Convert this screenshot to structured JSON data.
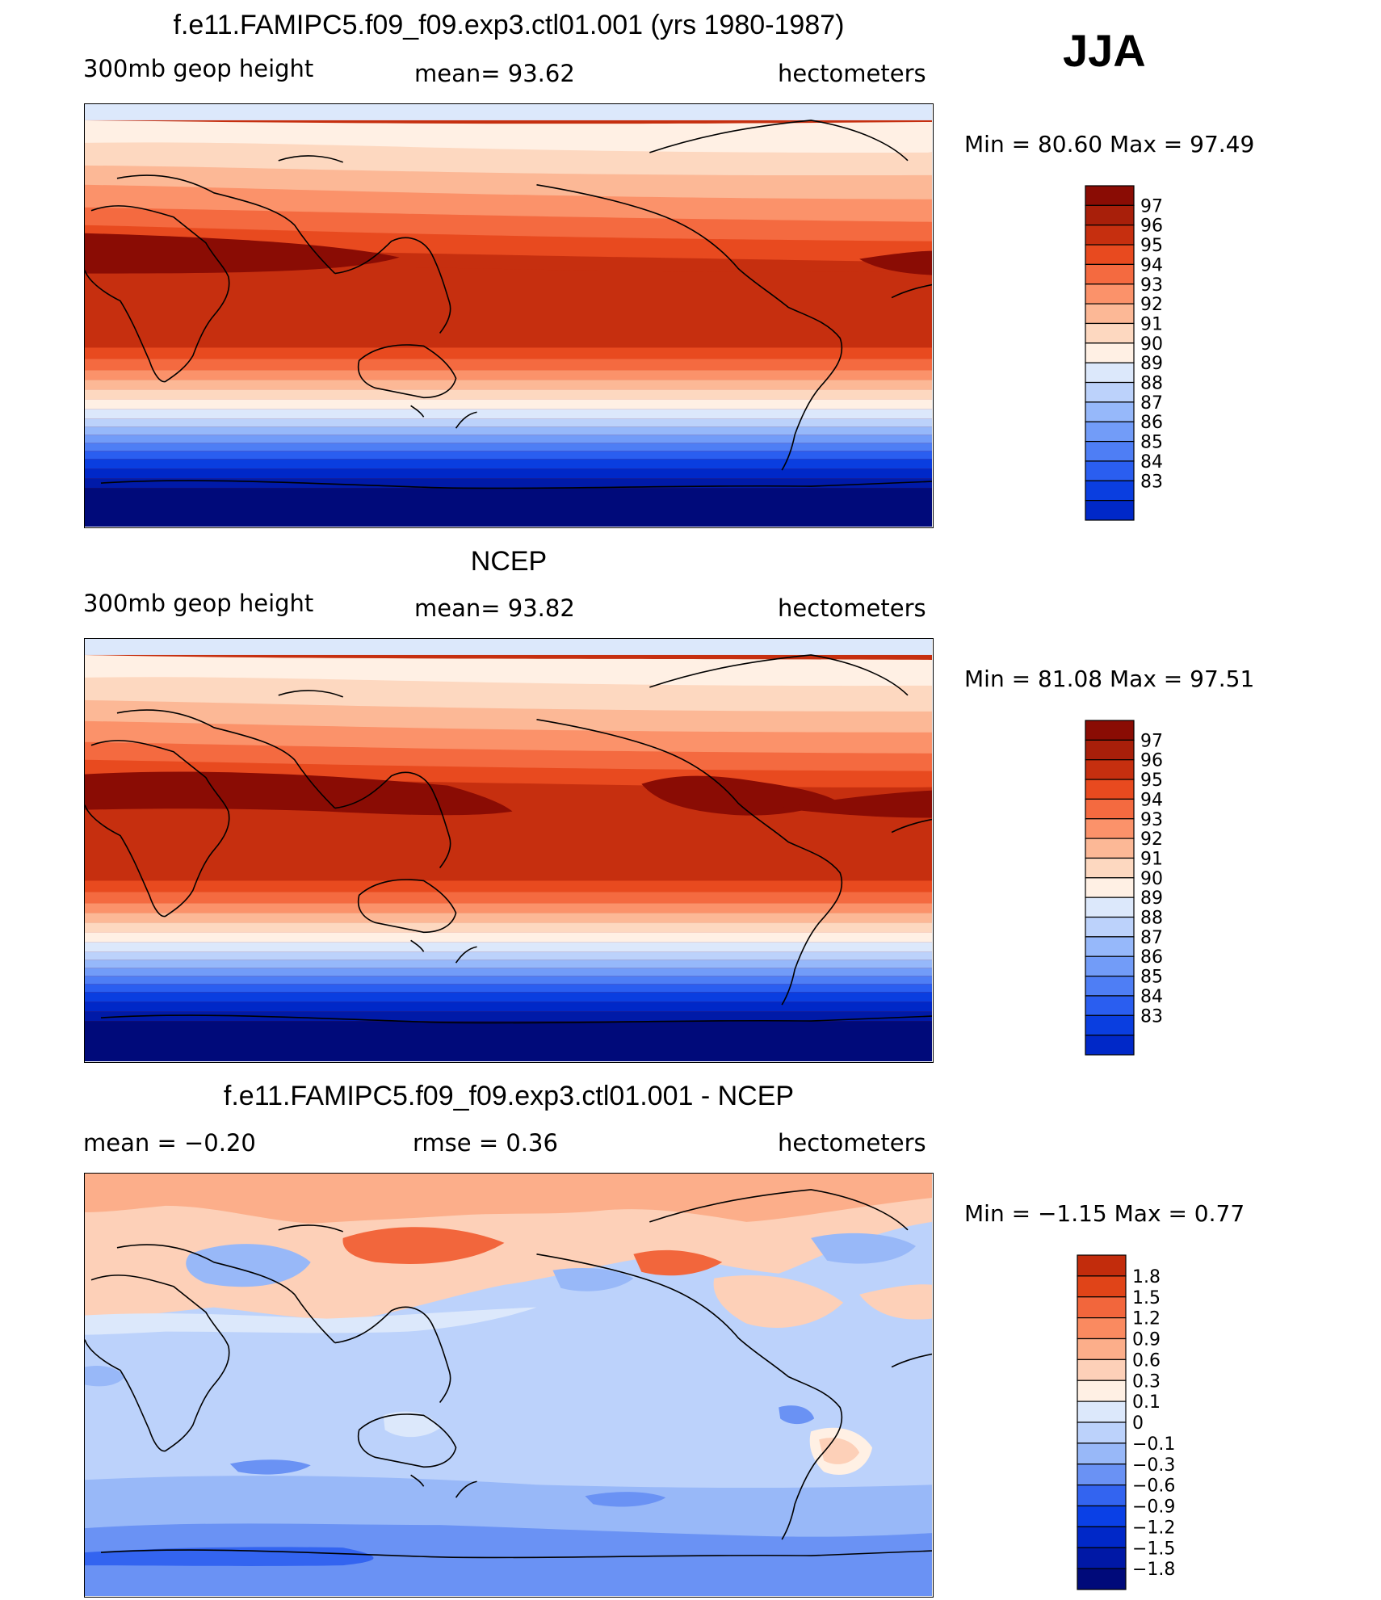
{
  "season": "JJA",
  "colors": {
    "model_levels": [
      "#000a7a",
      "#001aa8",
      "#0028c8",
      "#0a3ee0",
      "#2a5ef0",
      "#4e7ef5",
      "#729cf8",
      "#96b8fa",
      "#bcd2fb",
      "#dce8fb",
      "#fff0e4",
      "#fdd8c0",
      "#fcb896",
      "#fb926a",
      "#f46a40",
      "#e84a1f",
      "#c62f0f",
      "#a81f0a",
      "#8a0c04"
    ],
    "diff_levels": [
      "#000a7a",
      "#0018a6",
      "#0028c8",
      "#0a40e6",
      "#3364f0",
      "#6a92f4",
      "#98b8f8",
      "#bcd2fb",
      "#dce8fb",
      "#fff0e4",
      "#fdd0b8",
      "#fcae8a",
      "#fa8a60",
      "#f2663c",
      "#e04418",
      "#c22c0c",
      "#a01808",
      "#840a04"
    ]
  },
  "panels": [
    {
      "title": "f.e11.FAMIPC5.f09_f09.exp3.ctl01.001 (yrs 1980-1987)",
      "left_label": "300mb  geop  height",
      "center_label": "mean=   93.62",
      "right_label": "hectometers",
      "minmax": "Min  =    80.60  Max  =    97.49",
      "colorbar_labels": [
        "97",
        "96",
        "95",
        "94",
        "93",
        "92",
        "91",
        "90",
        "89",
        "88",
        "87",
        "86",
        "85",
        "84",
        "83"
      ]
    },
    {
      "title": "NCEP",
      "left_label": "300mb  geop  height",
      "center_label": "mean=   93.82",
      "right_label": "hectometers",
      "minmax": "Min  =    81.08  Max  =    97.51",
      "colorbar_labels": [
        "97",
        "96",
        "95",
        "94",
        "93",
        "92",
        "91",
        "90",
        "89",
        "88",
        "87",
        "86",
        "85",
        "84",
        "83"
      ]
    },
    {
      "title": "f.e11.FAMIPC5.f09_f09.exp3.ctl01.001 - NCEP",
      "left_label": "mean  =    −0.20",
      "center_label": "rmse  =     0.36",
      "right_label": "hectometers",
      "minmax": "Min  =   −1.15  Max  =      0.77",
      "colorbar_labels": [
        "1.8",
        "1.5",
        "1.2",
        "0.9",
        "0.6",
        "0.3",
        "0.1",
        "0",
        "−0.1",
        "−0.3",
        "−0.6",
        "−0.9",
        "−1.2",
        "−1.5",
        "−1.8"
      ]
    }
  ]
}
